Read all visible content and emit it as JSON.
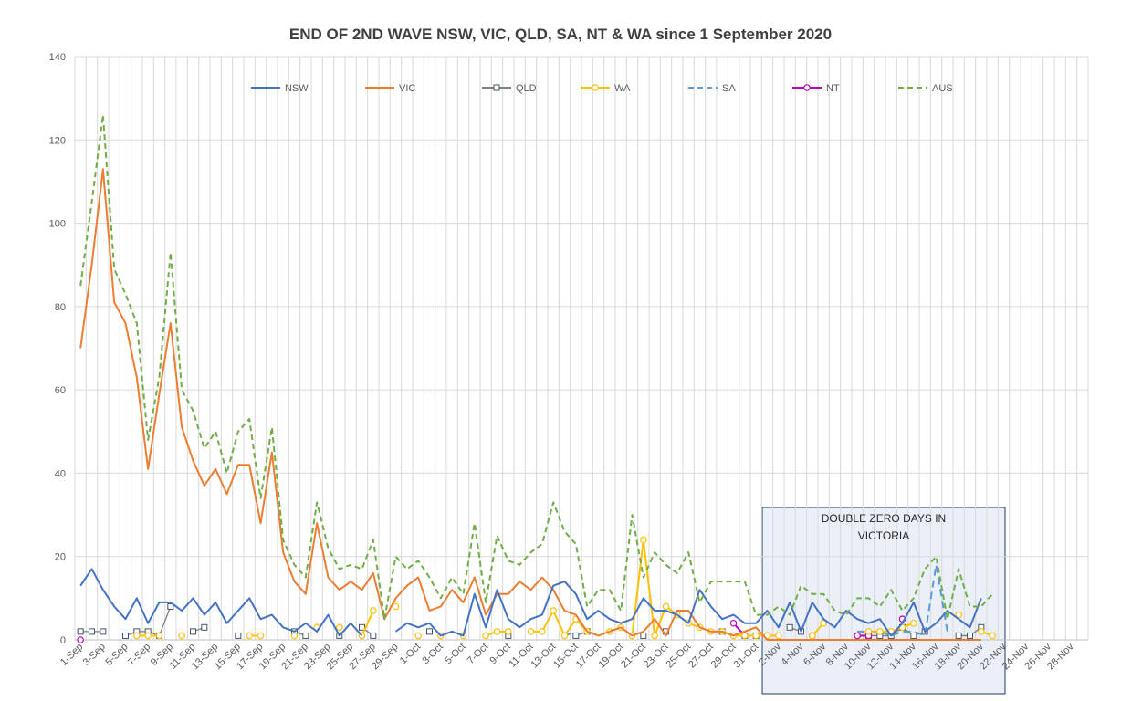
{
  "chart_data": {
    "type": "line",
    "title": "END OF 2ND WAVE NSW, VIC, QLD, SA, NT & WA since 1 September 2020",
    "xlabel": "",
    "ylabel": "",
    "ylim": [
      0,
      140
    ],
    "y_ticks": [
      0,
      20,
      40,
      60,
      80,
      100,
      120,
      140
    ],
    "grid": true,
    "legend_position": "top",
    "x": [
      "1-Sep",
      "2-Sep",
      "3-Sep",
      "4-Sep",
      "5-Sep",
      "6-Sep",
      "7-Sep",
      "8-Sep",
      "9-Sep",
      "10-Sep",
      "11-Sep",
      "12-Sep",
      "13-Sep",
      "14-Sep",
      "15-Sep",
      "16-Sep",
      "17-Sep",
      "18-Sep",
      "19-Sep",
      "20-Sep",
      "21-Sep",
      "22-Sep",
      "23-Sep",
      "24-Sep",
      "25-Sep",
      "26-Sep",
      "27-Sep",
      "28-Sep",
      "29-Sep",
      "30-Sep",
      "1-Oct",
      "2-Oct",
      "3-Oct",
      "4-Oct",
      "5-Oct",
      "6-Oct",
      "7-Oct",
      "8-Oct",
      "9-Oct",
      "10-Oct",
      "11-Oct",
      "12-Oct",
      "13-Oct",
      "14-Oct",
      "15-Oct",
      "16-Oct",
      "17-Oct",
      "18-Oct",
      "19-Oct",
      "20-Oct",
      "21-Oct",
      "22-Oct",
      "23-Oct",
      "24-Oct",
      "25-Oct",
      "26-Oct",
      "27-Oct",
      "28-Oct",
      "29-Oct",
      "30-Oct",
      "31-Oct",
      "1-Nov",
      "2-Nov",
      "3-Nov",
      "4-Nov",
      "5-Nov",
      "6-Nov",
      "7-Nov",
      "8-Nov",
      "9-Nov",
      "10-Nov",
      "11-Nov",
      "12-Nov",
      "13-Nov",
      "14-Nov",
      "15-Nov",
      "16-Nov",
      "17-Nov",
      "18-Nov",
      "19-Nov",
      "20-Nov",
      "21-Nov",
      "22-Nov",
      "23-Nov",
      "24-Nov",
      "25-Nov",
      "26-Nov",
      "27-Nov",
      "28-Nov",
      "29-Nov"
    ],
    "x_tick_labels": [
      "1-Sep",
      "3-Sep",
      "5-Sep",
      "7-Sep",
      "9-Sep",
      "11-Sep",
      "13-Sep",
      "15-Sep",
      "17-Sep",
      "19-Sep",
      "21-Sep",
      "23-Sep",
      "25-Sep",
      "27-Sep",
      "29-Sep",
      "1-Oct",
      "3-Oct",
      "5-Oct",
      "7-Oct",
      "9-Oct",
      "11-Oct",
      "13-Oct",
      "15-Oct",
      "17-Oct",
      "19-Oct",
      "21-Oct",
      "23-Oct",
      "25-Oct",
      "27-Oct",
      "29-Oct",
      "31-Oct",
      "2-Nov",
      "4-Nov",
      "6-Nov",
      "8-Nov",
      "10-Nov",
      "12-Nov",
      "14-Nov",
      "16-Nov",
      "18-Nov",
      "20-Nov",
      "22-Nov",
      "24-Nov",
      "26-Nov",
      "28-Nov"
    ],
    "series": [
      {
        "name": "NSW",
        "color": "#4472c4",
        "style": "solid",
        "marker": "none",
        "values": [
          13,
          17,
          12,
          8,
          5,
          10,
          4,
          9,
          9,
          7,
          10,
          6,
          9,
          4,
          7,
          10,
          5,
          6,
          3,
          2,
          4,
          2,
          6,
          1,
          4,
          1,
          null,
          null,
          2,
          4,
          3,
          4,
          1,
          2,
          1,
          11,
          3,
          12,
          5,
          3,
          5,
          6,
          13,
          14,
          11,
          5,
          7,
          5,
          4,
          5,
          10,
          7,
          7,
          6,
          4,
          12,
          8,
          5,
          6,
          4,
          4,
          7,
          3,
          9,
          2,
          9,
          5,
          3,
          7,
          5,
          4,
          5,
          1,
          4,
          9,
          2,
          4,
          7,
          5,
          3,
          10,
          null,
          null,
          null,
          null,
          null,
          null,
          null,
          null,
          null
        ]
      },
      {
        "name": "VIC",
        "color": "#ed7d31",
        "style": "solid",
        "marker": "none",
        "values": [
          70,
          90,
          113,
          81,
          76,
          63,
          41,
          59,
          76,
          51,
          43,
          37,
          41,
          35,
          42,
          42,
          28,
          45,
          21,
          14,
          11,
          28,
          15,
          12,
          14,
          12,
          16,
          5,
          10,
          13,
          15,
          7,
          8,
          12,
          9,
          15,
          6,
          11,
          11,
          14,
          12,
          15,
          12,
          7,
          6,
          2,
          1,
          2,
          3,
          1,
          2,
          5,
          1,
          7,
          7,
          3,
          2,
          2,
          1,
          2,
          3,
          0,
          0,
          0,
          0,
          0,
          0,
          0,
          0,
          0,
          0,
          0,
          0,
          0,
          0,
          0,
          0,
          0,
          0,
          0,
          0,
          null,
          null,
          null,
          null,
          null,
          null,
          null,
          null,
          null
        ]
      },
      {
        "name": "QLD",
        "color": "#7f7f7f",
        "style": "solid",
        "marker": "square",
        "values": [
          2,
          2,
          2,
          null,
          1,
          2,
          2,
          1,
          8,
          null,
          2,
          3,
          null,
          null,
          1,
          null,
          null,
          null,
          null,
          2,
          1,
          null,
          null,
          1,
          null,
          3,
          1,
          null,
          null,
          null,
          null,
          2,
          null,
          null,
          null,
          null,
          null,
          null,
          1,
          null,
          null,
          null,
          null,
          null,
          1,
          2,
          null,
          null,
          null,
          null,
          1,
          null,
          2,
          null,
          null,
          null,
          null,
          2,
          null,
          1,
          1,
          null,
          null,
          3,
          2,
          null,
          null,
          null,
          null,
          null,
          1,
          1,
          1,
          3,
          1,
          2,
          null,
          null,
          1,
          1,
          3,
          null,
          null,
          null,
          null,
          null,
          null,
          null,
          null,
          null
        ]
      },
      {
        "name": "WA",
        "color": "#ffc000",
        "style": "solid",
        "marker": "circle",
        "values": [
          null,
          null,
          null,
          null,
          null,
          1,
          1,
          1,
          null,
          1,
          null,
          null,
          null,
          null,
          null,
          1,
          1,
          null,
          null,
          1,
          null,
          3,
          null,
          3,
          null,
          1,
          7,
          null,
          8,
          null,
          1,
          null,
          1,
          null,
          1,
          null,
          1,
          2,
          2,
          null,
          2,
          2,
          7,
          1,
          5,
          2,
          null,
          2,
          3,
          1,
          24,
          1,
          8,
          6,
          4,
          3,
          2,
          2,
          1,
          1,
          1,
          1,
          1,
          null,
          null,
          1,
          4,
          null,
          null,
          null,
          2,
          2,
          2,
          3,
          4,
          null,
          null,
          null,
          6,
          null,
          2,
          1,
          null,
          null,
          null,
          null,
          null,
          null,
          null,
          null
        ]
      },
      {
        "name": "SA",
        "color": "#5b9bd5",
        "style": "dashed",
        "marker": "none",
        "values": [
          null,
          null,
          null,
          null,
          null,
          null,
          null,
          null,
          null,
          null,
          null,
          null,
          null,
          null,
          null,
          null,
          null,
          null,
          null,
          null,
          null,
          null,
          null,
          null,
          null,
          null,
          null,
          null,
          null,
          null,
          null,
          null,
          null,
          null,
          null,
          null,
          null,
          null,
          null,
          null,
          null,
          null,
          null,
          1,
          2,
          null,
          null,
          null,
          null,
          null,
          null,
          null,
          null,
          null,
          null,
          null,
          null,
          null,
          null,
          null,
          null,
          null,
          null,
          null,
          null,
          null,
          null,
          null,
          null,
          2,
          2,
          2,
          1,
          2,
          2,
          1,
          18,
          2,
          null,
          null,
          null,
          null,
          null,
          null,
          null,
          null,
          null,
          null,
          null,
          null
        ]
      },
      {
        "name": "NT",
        "color": "#c000c0",
        "style": "solid",
        "marker": "circle",
        "values": [
          0,
          null,
          null,
          null,
          null,
          null,
          null,
          null,
          null,
          null,
          null,
          null,
          null,
          null,
          null,
          null,
          null,
          null,
          null,
          null,
          null,
          null,
          null,
          null,
          null,
          null,
          null,
          null,
          null,
          null,
          null,
          null,
          null,
          null,
          null,
          null,
          null,
          null,
          null,
          null,
          null,
          null,
          null,
          null,
          null,
          null,
          null,
          null,
          null,
          null,
          null,
          null,
          null,
          null,
          null,
          null,
          null,
          null,
          4,
          1,
          null,
          null,
          null,
          null,
          null,
          1,
          null,
          null,
          null,
          1,
          1,
          null,
          null,
          5,
          null,
          null,
          null,
          null,
          null,
          null,
          null,
          null,
          null,
          null,
          null,
          null,
          null,
          null,
          null,
          null
        ]
      },
      {
        "name": "AUS",
        "color": "#70ad47",
        "style": "dashed",
        "marker": "none",
        "values": [
          85,
          105,
          126,
          89,
          83,
          76,
          48,
          63,
          93,
          60,
          55,
          46,
          50,
          40,
          50,
          53,
          34,
          51,
          24,
          18,
          15,
          33,
          22,
          17,
          18,
          17,
          24,
          5,
          20,
          17,
          19,
          15,
          10,
          15,
          11,
          28,
          9,
          25,
          19,
          18,
          21,
          23,
          33,
          26,
          23,
          8,
          12,
          12,
          7,
          30,
          15,
          21,
          18,
          16,
          21,
          9,
          14,
          14,
          14,
          14,
          6,
          6,
          8,
          6,
          13,
          11,
          11,
          7,
          6,
          10,
          10,
          8,
          12,
          7,
          10,
          17,
          20,
          5,
          17,
          8,
          8,
          11,
          null,
          null,
          null,
          null,
          null,
          null,
          null,
          null
        ]
      }
    ],
    "annotation": {
      "line1": "DOUBLE ZERO DAYS IN",
      "line2": "VICTORIA",
      "x_start": "1-Nov",
      "x_end": "22-Nov"
    }
  }
}
